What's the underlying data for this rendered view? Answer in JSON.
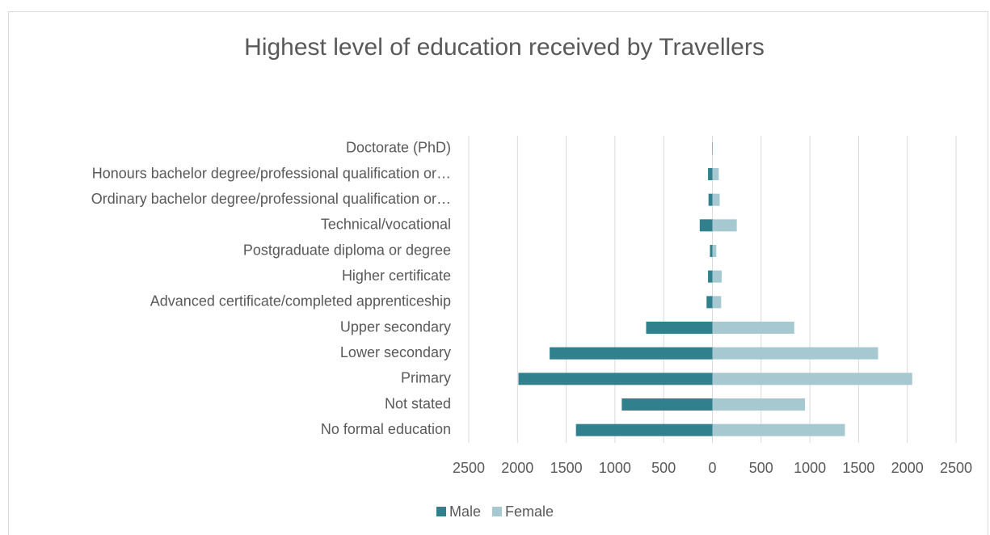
{
  "chart_data": {
    "type": "bar",
    "orientation": "horizontal",
    "title": "Highest level of education received by Travellers",
    "categories": [
      "Doctorate (PhD)",
      "Honours bachelor degree/professional qualification or…",
      "Ordinary bachelor degree/professional qualification or…",
      "Technical/vocational",
      "Postgraduate diploma or degree",
      "Higher certificate",
      "Advanced certificate/completed apprenticeship",
      "Upper secondary",
      "Lower secondary",
      "Primary",
      "Not stated",
      "No formal education"
    ],
    "series": [
      {
        "name": "Male",
        "color": "#31808e",
        "values": [
          -3,
          -45,
          -40,
          -130,
          -25,
          -45,
          -60,
          -680,
          -1670,
          -1990,
          -930,
          -1400
        ]
      },
      {
        "name": "Female",
        "color": "#a5c8d1",
        "values": [
          3,
          65,
          75,
          250,
          40,
          95,
          90,
          840,
          1700,
          2050,
          950,
          1360
        ]
      }
    ],
    "xlim": [
      -2500,
      2500
    ],
    "xticks": [
      {
        "value": -2500,
        "label": "2500"
      },
      {
        "value": -2000,
        "label": "2000"
      },
      {
        "value": -1500,
        "label": "1500"
      },
      {
        "value": -1000,
        "label": "1000"
      },
      {
        "value": -500,
        "label": "500"
      },
      0,
      500,
      1000,
      1500,
      2000,
      2500
    ],
    "grid": true,
    "legend": "bottom"
  }
}
